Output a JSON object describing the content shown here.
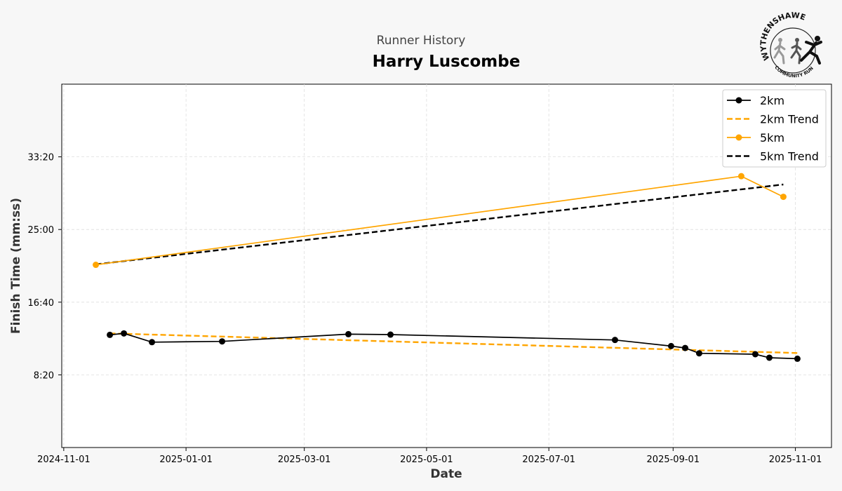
{
  "chart_data": {
    "type": "line",
    "supertitle": "Runner History",
    "title": "Harry Luscombe",
    "xlabel": "Date",
    "ylabel": "Finish Time (mm:ss)",
    "x_ticks": [
      "2024-11-01",
      "2025-01-01",
      "2025-03-01",
      "2025-05-01",
      "2025-07-01",
      "2025-09-01",
      "2025-11-01"
    ],
    "y_ticks": [
      "8:20",
      "16:40",
      "25:00",
      "33:20"
    ],
    "xlim": [
      "2024-10-31",
      "2025-11-19"
    ],
    "ylim": [
      "0:00",
      "41:40"
    ],
    "grid": true,
    "legend": "top-right",
    "series": [
      {
        "name": "2km",
        "color": "#000000",
        "style": "solid",
        "marker": true,
        "points": [
          {
            "x": "2024-11-24",
            "y": "12:55"
          },
          {
            "x": "2024-12-01",
            "y": "13:05"
          },
          {
            "x": "2024-12-15",
            "y": "12:05"
          },
          {
            "x": "2025-01-19",
            "y": "12:10"
          },
          {
            "x": "2025-03-23",
            "y": "13:00"
          },
          {
            "x": "2025-04-13",
            "y": "12:57"
          },
          {
            "x": "2025-08-03",
            "y": "12:20"
          },
          {
            "x": "2025-08-31",
            "y": "11:38"
          },
          {
            "x": "2025-09-07",
            "y": "11:25"
          },
          {
            "x": "2025-09-14",
            "y": "10:48"
          },
          {
            "x": "2025-10-12",
            "y": "10:42"
          },
          {
            "x": "2025-10-19",
            "y": "10:18"
          },
          {
            "x": "2025-11-02",
            "y": "10:11"
          }
        ]
      },
      {
        "name": "2km Trend",
        "color": "#FFA500",
        "style": "dashed",
        "marker": false,
        "points": [
          {
            "x": "2024-11-24",
            "y": "13:05"
          },
          {
            "x": "2025-11-02",
            "y": "10:50"
          }
        ]
      },
      {
        "name": "5km",
        "color": "#FFA500",
        "style": "solid",
        "marker": true,
        "points": [
          {
            "x": "2024-11-17",
            "y": "20:57"
          },
          {
            "x": "2025-10-05",
            "y": "31:07"
          },
          {
            "x": "2025-10-26",
            "y": "28:45"
          }
        ]
      },
      {
        "name": "5km Trend",
        "color": "#000000",
        "style": "dashed",
        "marker": false,
        "points": [
          {
            "x": "2024-11-17",
            "y": "21:00"
          },
          {
            "x": "2025-10-26",
            "y": "30:10"
          }
        ]
      }
    ]
  },
  "logo": {
    "arc_text": "WYTHENSHAWE",
    "sub_text": "COMMUNITY RUN"
  }
}
